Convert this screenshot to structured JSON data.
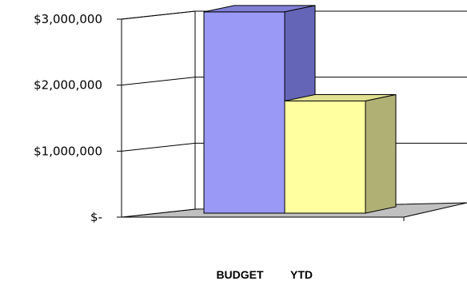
{
  "chart_data": {
    "type": "bar",
    "style": "3d-column",
    "title": "",
    "xlabel": "",
    "ylabel": "",
    "categories": [
      "BUDGET",
      "YTD"
    ],
    "values": [
      3050000,
      1700000
    ],
    "colors": [
      "#9a99f6",
      "#ffffa0"
    ],
    "ylim": [
      0,
      3000000
    ],
    "y_ticks": [
      {
        "value": 0,
        "label": "$-"
      },
      {
        "value": 1000000,
        "label": "$1,000,000"
      },
      {
        "value": 2000000,
        "label": "$2,000,000"
      },
      {
        "value": 3000000,
        "label": "$3,000,000"
      }
    ],
    "grid": true,
    "legend": "none",
    "floor_color": "#c0c0c0"
  }
}
